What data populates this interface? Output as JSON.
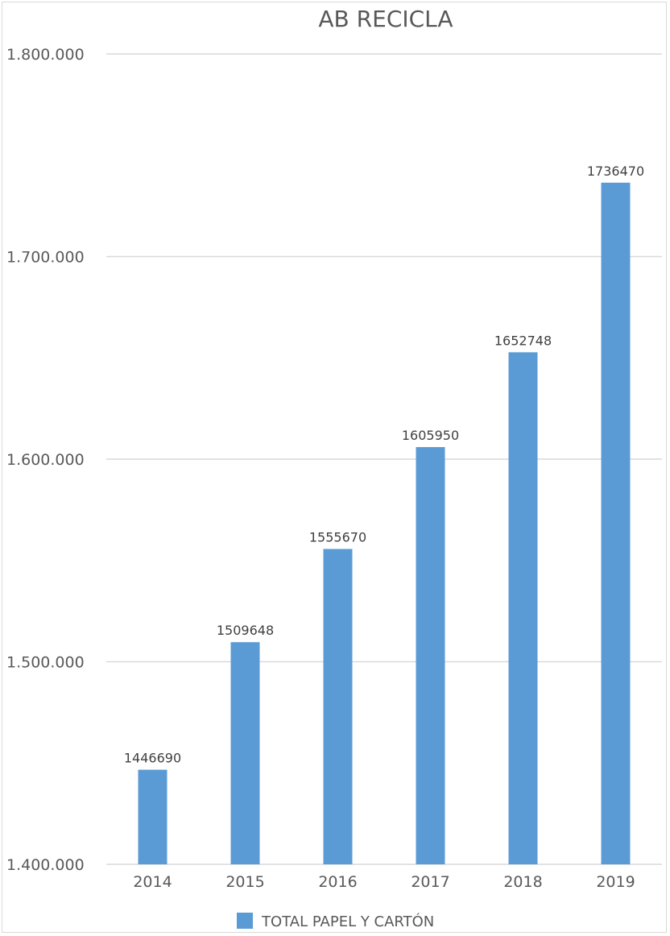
{
  "chart_data": {
    "type": "bar",
    "title": "AB RECICLA",
    "xlabel": "",
    "ylabel": "",
    "categories": [
      "2014",
      "2015",
      "2016",
      "2017",
      "2018",
      "2019"
    ],
    "series": [
      {
        "name": "TOTAL PAPEL Y CARTÓN",
        "values": [
          1446690,
          1509648,
          1555670,
          1605950,
          1652748,
          1736470
        ],
        "color": "#5b9bd5"
      }
    ],
    "data_labels": [
      "1446690",
      "1509648",
      "1555670",
      "1605950",
      "1652748",
      "1736470"
    ],
    "ylim": [
      1400000,
      1800000
    ],
    "yticks": [
      1400000,
      1500000,
      1600000,
      1700000,
      1800000
    ],
    "ytick_labels": [
      "1.400.000",
      "1.500.000",
      "1.600.000",
      "1.700.000",
      "1.800.000"
    ],
    "grid": true,
    "legend_position": "bottom"
  }
}
